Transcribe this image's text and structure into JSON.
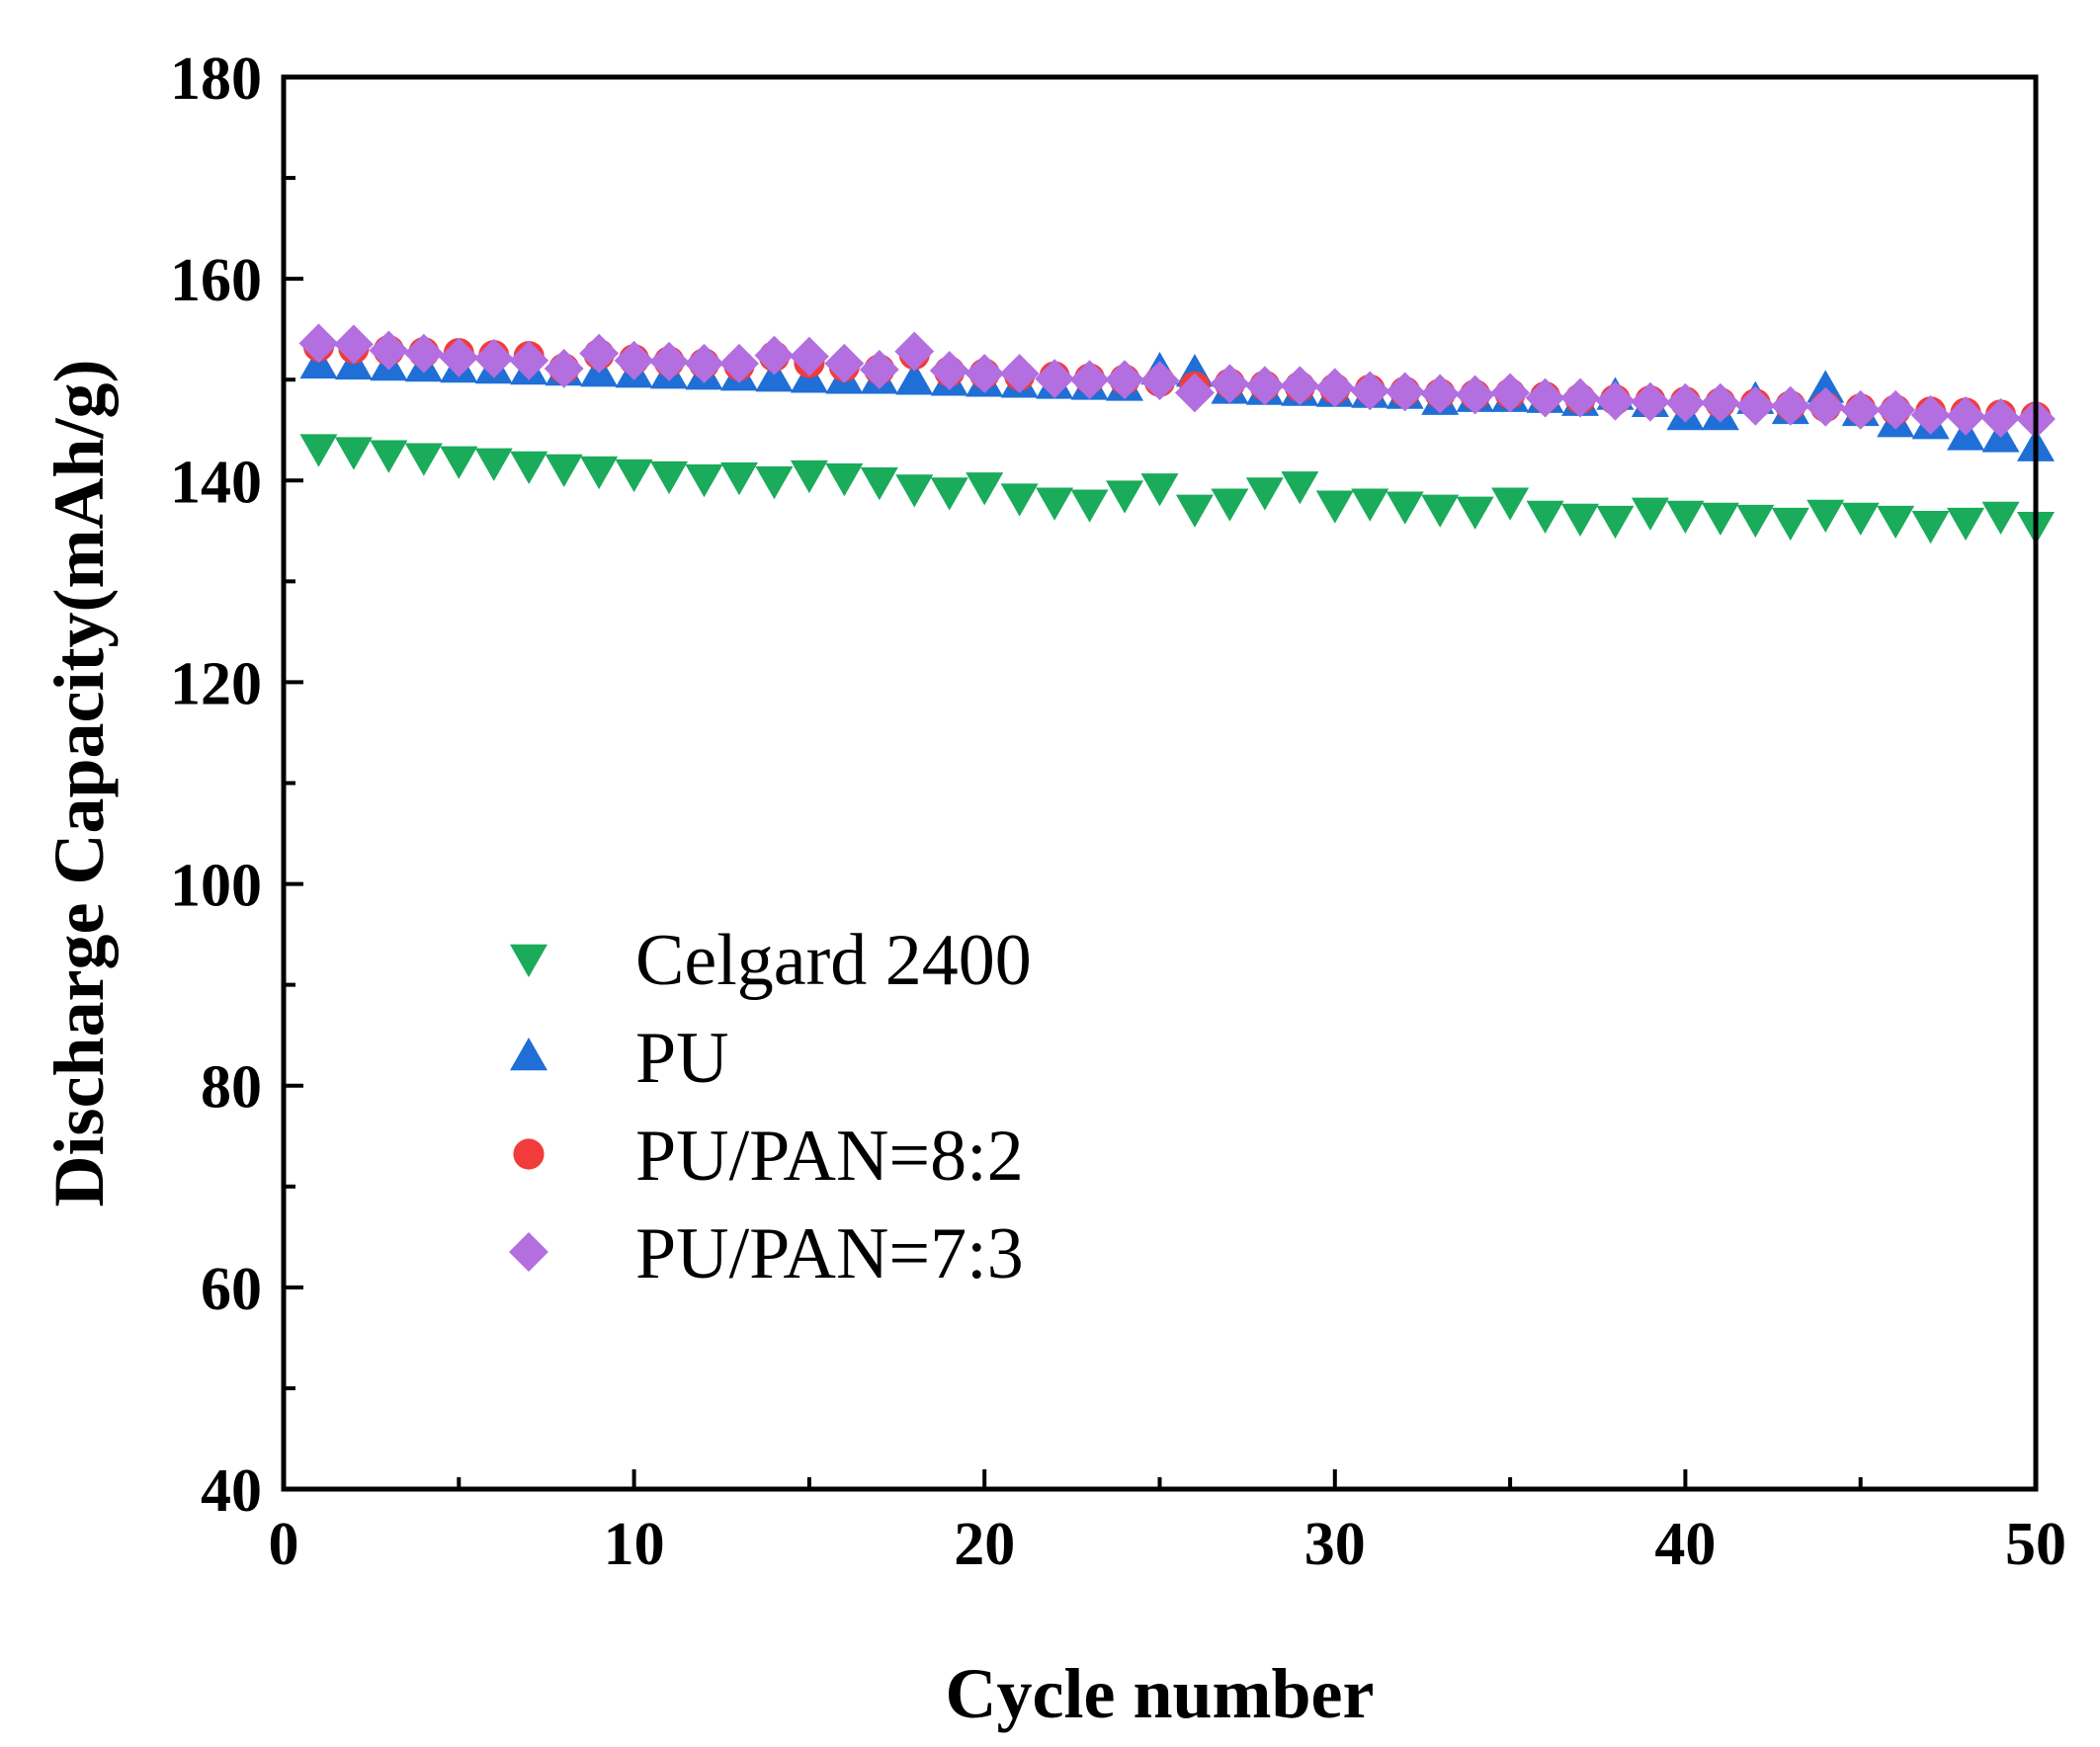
{
  "chart_data": {
    "type": "scatter",
    "title": "",
    "xlabel": "Cycle number",
    "ylabel": "Discharge Capacity(mAh/g)",
    "xlim": [
      0,
      50
    ],
    "ylim": [
      40,
      180
    ],
    "xticks": [
      0,
      10,
      20,
      30,
      40,
      50
    ],
    "yticks": [
      40,
      60,
      80,
      100,
      120,
      140,
      160,
      180
    ],
    "grid": false,
    "legend_position": "center-left",
    "x": [
      1,
      2,
      3,
      4,
      5,
      6,
      7,
      8,
      9,
      10,
      11,
      12,
      13,
      14,
      15,
      16,
      17,
      18,
      19,
      20,
      21,
      22,
      23,
      24,
      25,
      26,
      27,
      28,
      29,
      30,
      31,
      32,
      33,
      34,
      35,
      36,
      37,
      38,
      39,
      40,
      41,
      42,
      43,
      44,
      45,
      46,
      47,
      48,
      49,
      50
    ],
    "series": [
      {
        "name": "Celgard 2400",
        "marker": "triangle-down",
        "color": "#1aab5b",
        "values": [
          143.2,
          142.9,
          142.6,
          142.3,
          142.0,
          141.8,
          141.5,
          141.2,
          141.0,
          140.7,
          140.5,
          140.2,
          140.4,
          140.0,
          140.6,
          140.3,
          139.9,
          139.2,
          138.9,
          139.4,
          138.3,
          137.9,
          137.7,
          138.6,
          139.3,
          137.2,
          137.8,
          138.9,
          139.5,
          137.6,
          137.8,
          137.5,
          137.2,
          137.0,
          137.9,
          136.6,
          136.3,
          136.1,
          136.9,
          136.6,
          136.4,
          136.2,
          135.9,
          136.7,
          136.4,
          136.1,
          135.6,
          135.9,
          136.5,
          135.5
        ]
      },
      {
        "name": "PU",
        "marker": "triangle-up",
        "color": "#1f6fd6",
        "values": [
          151.5,
          151.4,
          151.3,
          151.2,
          151.1,
          151.0,
          150.9,
          150.8,
          150.7,
          150.6,
          150.5,
          150.4,
          150.3,
          150.2,
          150.1,
          150.0,
          150.0,
          149.9,
          149.8,
          149.7,
          149.6,
          149.5,
          149.4,
          149.3,
          150.9,
          150.7,
          149.0,
          148.9,
          148.8,
          148.7,
          148.6,
          148.5,
          147.9,
          148.2,
          148.2,
          148.1,
          147.8,
          148.4,
          147.7,
          146.4,
          146.4,
          148.0,
          147.0,
          149.1,
          146.8,
          145.7,
          145.5,
          144.4,
          144.2,
          143.3
        ]
      },
      {
        "name": "PU/PAN=8:2",
        "marker": "circle",
        "color": "#f23b3b",
        "values": [
          153.3,
          153.1,
          152.9,
          152.7,
          152.6,
          152.4,
          152.3,
          151.1,
          152.5,
          152.0,
          151.8,
          151.6,
          151.4,
          152.3,
          151.7,
          151.3,
          151.0,
          152.5,
          150.8,
          150.6,
          150.4,
          150.3,
          150.1,
          150.0,
          149.8,
          149.3,
          149.6,
          149.4,
          149.3,
          149.1,
          149.0,
          148.8,
          148.6,
          148.5,
          148.6,
          148.3,
          148.1,
          148.0,
          147.9,
          147.8,
          147.7,
          147.6,
          147.4,
          147.3,
          147.1,
          147.0,
          146.8,
          146.7,
          146.5,
          146.3
        ]
      },
      {
        "name": "PU/PAN=7:3",
        "marker": "diamond",
        "color": "#b36ee0",
        "values": [
          153.6,
          153.5,
          152.9,
          152.6,
          152.2,
          152.1,
          151.9,
          151.1,
          152.6,
          151.9,
          151.8,
          151.6,
          151.6,
          152.4,
          152.3,
          151.6,
          151.0,
          152.8,
          150.9,
          150.6,
          150.6,
          150.1,
          150.0,
          150.0,
          149.9,
          148.7,
          149.6,
          149.4,
          149.4,
          149.2,
          148.9,
          148.8,
          148.6,
          148.5,
          148.7,
          148.2,
          148.2,
          147.9,
          147.8,
          147.7,
          147.7,
          147.4,
          147.4,
          147.3,
          147.0,
          147.0,
          146.5,
          146.4,
          146.2,
          146.1
        ]
      }
    ]
  }
}
